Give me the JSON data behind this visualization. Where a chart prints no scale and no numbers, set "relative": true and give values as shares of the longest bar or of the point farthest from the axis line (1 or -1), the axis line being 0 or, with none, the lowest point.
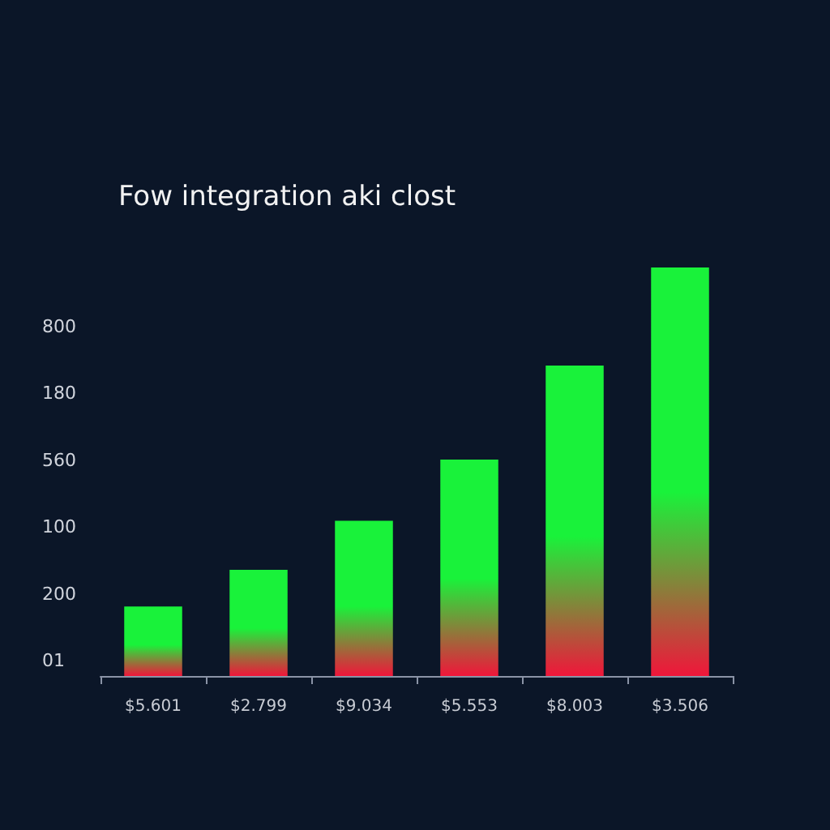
{
  "chart_data": {
    "type": "bar",
    "title": "Fow integration aki clost",
    "categories": [
      "$5.601",
      "$2.799",
      "$9.034",
      "$5.553",
      "$8.003",
      "$3.506"
    ],
    "series": [
      {
        "color": "#19f23a",
        "values": [
          0.17,
          0.26,
          0.38,
          0.53,
          0.76,
          1
        ]
      }
    ],
    "relative": true,
    "annotations": [
      "800",
      "180",
      "560",
      "100",
      "200",
      "01"
    ]
  }
}
